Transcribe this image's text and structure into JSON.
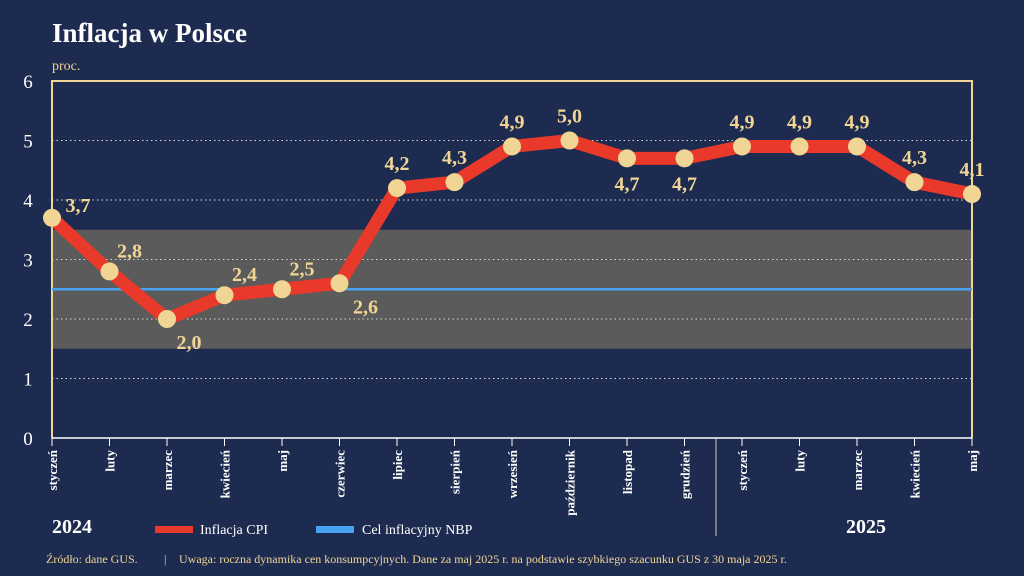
{
  "colors": {
    "background": "#1c2b4f",
    "accent": "#f1d595",
    "cpi": "#e8392a",
    "target": "#4aa3f0",
    "band": "#5b5b5b",
    "text": "#ffffff"
  },
  "chart_data": {
    "type": "line",
    "title": "Inflacja w Polsce",
    "ylabel": "proc.",
    "ylim": [
      0,
      6
    ],
    "yticks": [
      "0",
      "1",
      "2",
      "3",
      "4",
      "5",
      "6"
    ],
    "grid": "horizontal dotted",
    "categories": [
      "styczeń",
      "luty",
      "marzec",
      "kwiecień",
      "maj",
      "czerwiec",
      "lipiec",
      "sierpień",
      "wrzesień",
      "październik",
      "listopad",
      "grudzień",
      "styczeń",
      "luty",
      "marzec",
      "kwiecień",
      "maj"
    ],
    "years": [
      "2024",
      "2025"
    ],
    "series": [
      {
        "name": "Inflacja CPI",
        "values": [
          3.7,
          2.8,
          2.0,
          2.4,
          2.5,
          2.6,
          4.2,
          4.3,
          4.9,
          5.0,
          4.7,
          4.7,
          4.9,
          4.9,
          4.9,
          4.3,
          4.1
        ],
        "labels": [
          "3,7",
          "2,8",
          "2,0",
          "2,4",
          "2,5",
          "2,6",
          "4,2",
          "4,3",
          "4,9",
          "5,0",
          "4,7",
          "4,7",
          "4,9",
          "4,9",
          "4,9",
          "4,3",
          "4,1"
        ]
      },
      {
        "name": "Cel inflacyjny NBP",
        "value": 2.5,
        "tolerance_band": [
          1.5,
          3.5
        ]
      }
    ],
    "legend": "bottom-left"
  },
  "footer": {
    "source": "Źródło: dane GUS.",
    "separator": "|",
    "note": "Uwaga: roczna dynamika cen konsumpcyjnych. Dane za maj 2025 r. na podstawie szybkiego szacunku GUS z 30 maja 2025 r."
  }
}
